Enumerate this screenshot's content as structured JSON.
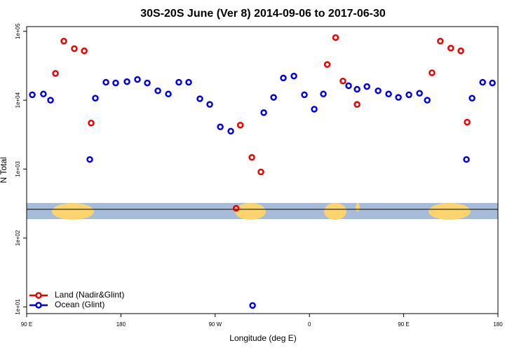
{
  "chart_data": {
    "type": "scatter",
    "title": "30S-20S June (Ver 8)   2014-09-06 to 2017-06-30",
    "x_label": "Longitude (deg E)",
    "y_label": "N Total",
    "log_y": true,
    "legend": "lower left",
    "xlim": [
      90,
      540
    ],
    "ylim": [
      8,
      117000
    ],
    "xticks": [
      {
        "value": 90,
        "label": "90 E"
      },
      {
        "value": 180,
        "label": "180"
      },
      {
        "value": 270,
        "label": "90 W"
      },
      {
        "value": 360,
        "label": "0"
      },
      {
        "value": 450,
        "label": "90 E"
      },
      {
        "value": 540,
        "label": "180"
      }
    ],
    "yticks": [
      {
        "value": 10,
        "label": "1e+01"
      },
      {
        "value": 100,
        "label": "1e+02"
      },
      {
        "value": 1000,
        "label": "1e+03"
      },
      {
        "value": 10000,
        "label": "1e+04"
      },
      {
        "value": 100000,
        "label": "1e+05"
      }
    ],
    "series": [
      {
        "name": "Land (Nadir&Glint)",
        "color": "#ee0000",
        "x": [
          117.5,
          125.5,
          135.5,
          145,
          151.6,
          290,
          294,
          305,
          313.7,
          377,
          385,
          392,
          405.5,
          477,
          485,
          495,
          504.6,
          510.6
        ],
        "values": [
          24500,
          72000,
          56000,
          52000,
          4660,
          270,
          4350,
          1480,
          910,
          33000,
          81000,
          19000,
          8700,
          25000,
          72000,
          57000,
          52000,
          4800
        ]
      },
      {
        "name": "Ocean (Glint)",
        "color": "#0000ee",
        "x": [
          95.4,
          106,
          112.8,
          150.3,
          155.6,
          165.7,
          175,
          185.8,
          195.8,
          205.2,
          215.3,
          225.3,
          235.3,
          244.7,
          255.4,
          264.8,
          274.9,
          284.9,
          305.7,
          316.4,
          325.8,
          335.1,
          345.2,
          355.2,
          364.6,
          373.3,
          397.4,
          405.5,
          414.9,
          425.6,
          435.6,
          445,
          455,
          465.1,
          472.5,
          509.9,
          515.3,
          525.4,
          534.7
        ],
        "values": [
          12000,
          12300,
          10000,
          1380,
          10700,
          18200,
          17800,
          18600,
          20000,
          17800,
          13700,
          12300,
          18200,
          18200,
          10500,
          8700,
          4100,
          3550,
          10.5,
          6600,
          11000,
          21000,
          22400,
          12000,
          7400,
          12300,
          16200,
          14400,
          15800,
          13700,
          12300,
          11000,
          12000,
          12600,
          10000,
          1380,
          10700,
          18200,
          17800
        ]
      }
    ]
  }
}
